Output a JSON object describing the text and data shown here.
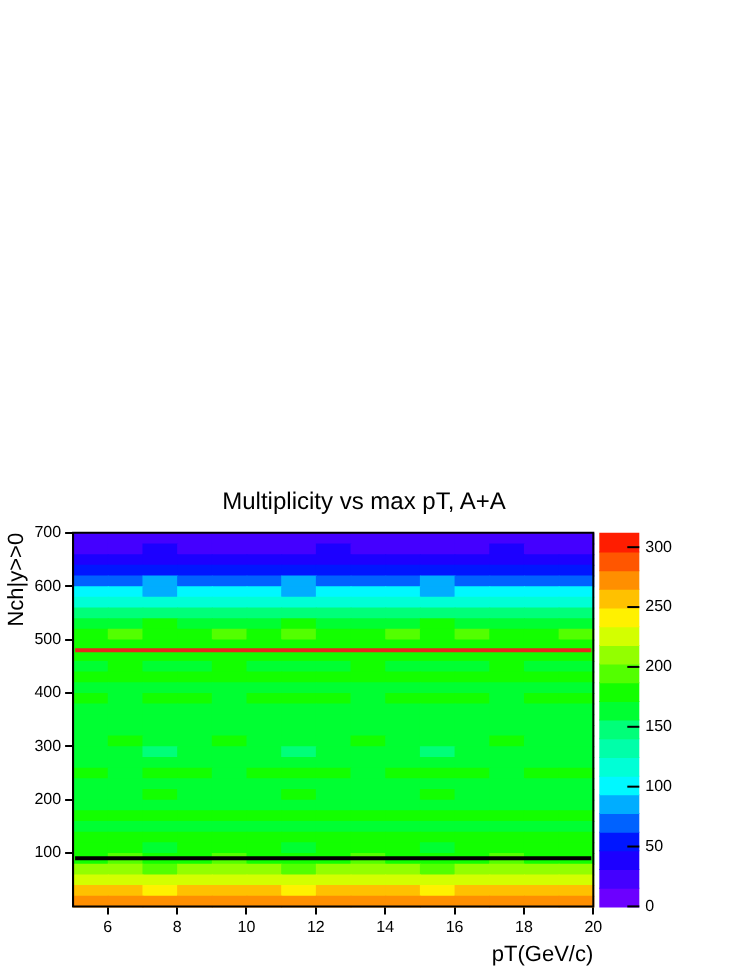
{
  "chart_data": {
    "type": "heatmap",
    "title": "Multiplicity vs max pT, A+A",
    "xlabel": "pT(GeV/c)",
    "ylabel": "Nch|y>>0",
    "xlim": [
      5,
      20
    ],
    "xticks": [
      6,
      8,
      10,
      12,
      14,
      16,
      18,
      20
    ],
    "ylim": [
      0,
      700
    ],
    "yticks": [
      100,
      200,
      300,
      400,
      500,
      600,
      700
    ],
    "clim": [
      0,
      312
    ],
    "cticks": [
      0,
      50,
      100,
      150,
      200,
      250,
      300
    ],
    "ref_lines": [
      {
        "axis": "y",
        "value": 480,
        "color": "#e8281e"
      },
      {
        "axis": "y",
        "value": 90,
        "color": "#000000"
      }
    ],
    "cells": [
      [
        18,
        20,
        22,
        20,
        18,
        20,
        22,
        20,
        18,
        20,
        22,
        20,
        18,
        20,
        20
      ],
      [
        30,
        28,
        32,
        30,
        30,
        28,
        30,
        32,
        30,
        28,
        30,
        30,
        32,
        30,
        28
      ],
      [
        42,
        40,
        38,
        42,
        40,
        42,
        38,
        40,
        42,
        40,
        38,
        42,
        40,
        40,
        42
      ],
      [
        55,
        58,
        52,
        55,
        58,
        55,
        52,
        55,
        58,
        55,
        52,
        55,
        58,
        55,
        55
      ],
      [
        75,
        72,
        78,
        75,
        72,
        75,
        78,
        75,
        72,
        75,
        78,
        75,
        72,
        75,
        75
      ],
      [
        95,
        98,
        92,
        95,
        98,
        95,
        92,
        95,
        98,
        95,
        92,
        95,
        98,
        95,
        95
      ],
      [
        118,
        115,
        120,
        118,
        115,
        118,
        120,
        118,
        115,
        118,
        120,
        118,
        115,
        118,
        118
      ],
      [
        145,
        148,
        142,
        145,
        148,
        145,
        142,
        145,
        148,
        145,
        142,
        145,
        148,
        145,
        145
      ],
      [
        170,
        168,
        172,
        170,
        168,
        170,
        172,
        170,
        168,
        170,
        172,
        170,
        168,
        170,
        170
      ],
      [
        185,
        190,
        182,
        185,
        188,
        185,
        190,
        182,
        185,
        188,
        185,
        190,
        182,
        185,
        188
      ],
      [
        180,
        178,
        182,
        180,
        178,
        180,
        182,
        180,
        178,
        180,
        182,
        180,
        178,
        180,
        180
      ],
      [
        175,
        180,
        172,
        178,
        175,
        180,
        172,
        178,
        175,
        180,
        172,
        178,
        175,
        180,
        175
      ],
      [
        170,
        172,
        168,
        170,
        172,
        170,
        168,
        170,
        172,
        170,
        168,
        170,
        172,
        170,
        170
      ],
      [
        178,
        175,
        180,
        178,
        175,
        178,
        180,
        178,
        175,
        178,
        180,
        178,
        175,
        178,
        178
      ],
      [
        165,
        168,
        162,
        165,
        168,
        165,
        162,
        165,
        168,
        165,
        162,
        165,
        168,
        165,
        165
      ],
      [
        172,
        170,
        175,
        172,
        170,
        172,
        175,
        172,
        170,
        172,
        175,
        172,
        170,
        172,
        172
      ],
      [
        160,
        162,
        158,
        160,
        162,
        160,
        158,
        160,
        162,
        160,
        158,
        160,
        162,
        160,
        160
      ],
      [
        168,
        165,
        170,
        168,
        165,
        168,
        170,
        168,
        165,
        168,
        170,
        168,
        165,
        168,
        168
      ],
      [
        162,
        165,
        160,
        162,
        165,
        162,
        160,
        162,
        165,
        162,
        160,
        162,
        165,
        162,
        162
      ],
      [
        170,
        172,
        168,
        170,
        172,
        170,
        168,
        170,
        172,
        170,
        168,
        170,
        172,
        170,
        170
      ],
      [
        158,
        160,
        155,
        158,
        160,
        158,
        155,
        158,
        160,
        158,
        155,
        158,
        160,
        158,
        158
      ],
      [
        166,
        168,
        164,
        166,
        168,
        166,
        164,
        166,
        168,
        166,
        164,
        166,
        168,
        166,
        166
      ],
      [
        172,
        170,
        175,
        172,
        170,
        172,
        175,
        172,
        170,
        172,
        175,
        172,
        170,
        172,
        172
      ],
      [
        162,
        165,
        160,
        162,
        165,
        162,
        160,
        162,
        165,
        162,
        160,
        162,
        165,
        162,
        162
      ],
      [
        170,
        168,
        172,
        170,
        168,
        170,
        172,
        170,
        168,
        170,
        172,
        170,
        168,
        170,
        170
      ],
      [
        165,
        168,
        162,
        165,
        168,
        165,
        162,
        165,
        168,
        165,
        162,
        165,
        168,
        165,
        165
      ],
      [
        175,
        172,
        178,
        175,
        172,
        175,
        178,
        175,
        172,
        175,
        178,
        175,
        172,
        175,
        175
      ],
      [
        168,
        170,
        165,
        168,
        170,
        168,
        165,
        168,
        170,
        168,
        165,
        168,
        170,
        168,
        168
      ],
      [
        178,
        180,
        175,
        178,
        180,
        178,
        175,
        178,
        180,
        178,
        175,
        178,
        180,
        178,
        178
      ],
      [
        172,
        175,
        170,
        172,
        175,
        172,
        170,
        172,
        175,
        172,
        170,
        172,
        175,
        172,
        172
      ],
      [
        185,
        188,
        182,
        185,
        188,
        185,
        182,
        185,
        188,
        185,
        182,
        185,
        188,
        185,
        185
      ],
      [
        205,
        208,
        202,
        205,
        208,
        205,
        202,
        205,
        208,
        205,
        202,
        205,
        208,
        205,
        205
      ],
      [
        228,
        225,
        230,
        228,
        225,
        228,
        230,
        228,
        225,
        228,
        230,
        228,
        225,
        228,
        228
      ],
      [
        250,
        255,
        248,
        252,
        255,
        250,
        248,
        252,
        255,
        250,
        248,
        252,
        255,
        250,
        252
      ],
      [
        272,
        268,
        275,
        270,
        268,
        272,
        275,
        270,
        268,
        272,
        275,
        270,
        268,
        272,
        270
      ]
    ]
  }
}
